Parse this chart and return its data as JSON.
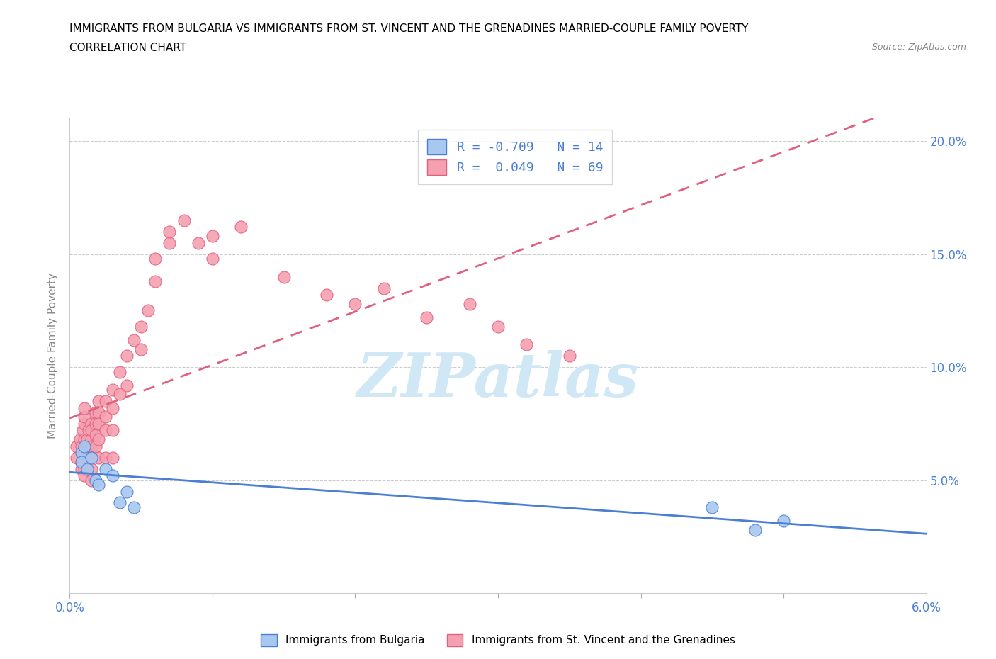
{
  "title_line1": "IMMIGRANTS FROM BULGARIA VS IMMIGRANTS FROM ST. VINCENT AND THE GRENADINES MARRIED-COUPLE FAMILY POVERTY",
  "title_line2": "CORRELATION CHART",
  "source_text": "Source: ZipAtlas.com",
  "ylabel": "Married-Couple Family Poverty",
  "xlim": [
    0.0,
    0.06
  ],
  "ylim": [
    0.0,
    0.21
  ],
  "xtick_positions": [
    0.0,
    0.01,
    0.02,
    0.03,
    0.04,
    0.05,
    0.06
  ],
  "xtick_labels": [
    "0.0%",
    "",
    "",
    "",
    "",
    "",
    "6.0%"
  ],
  "ytick_positions": [
    0.0,
    0.05,
    0.1,
    0.15,
    0.2
  ],
  "ytick_labels": [
    "",
    "5.0%",
    "10.0%",
    "15.0%",
    "20.0%"
  ],
  "color_bulgaria": "#a8c8f0",
  "color_svg": "#f5a0b0",
  "line_bulgaria_color": "#4a7fd4",
  "line_svg_color": "#e06080",
  "tick_color": "#4a7fd4",
  "watermark_text": "ZIPatlas",
  "watermark_color": "#d0e8f5",
  "bulgaria_x": [
    0.0008,
    0.0008,
    0.001,
    0.0012,
    0.0015,
    0.0018,
    0.002,
    0.0025,
    0.003,
    0.0035,
    0.004,
    0.0045,
    0.045,
    0.048,
    0.05
  ],
  "bulgaria_y": [
    0.062,
    0.058,
    0.065,
    0.055,
    0.06,
    0.05,
    0.048,
    0.055,
    0.052,
    0.04,
    0.045,
    0.038,
    0.038,
    0.028,
    0.032
  ],
  "svincent_x": [
    0.0005,
    0.0005,
    0.0007,
    0.0008,
    0.0008,
    0.0008,
    0.0009,
    0.001,
    0.001,
    0.001,
    0.001,
    0.001,
    0.001,
    0.001,
    0.001,
    0.0012,
    0.0012,
    0.0013,
    0.0013,
    0.0015,
    0.0015,
    0.0015,
    0.0015,
    0.0015,
    0.0015,
    0.0015,
    0.0018,
    0.0018,
    0.0018,
    0.0018,
    0.002,
    0.002,
    0.002,
    0.002,
    0.002,
    0.0025,
    0.0025,
    0.0025,
    0.0025,
    0.003,
    0.003,
    0.003,
    0.003,
    0.0035,
    0.0035,
    0.004,
    0.004,
    0.0045,
    0.005,
    0.005,
    0.0055,
    0.006,
    0.006,
    0.007,
    0.007,
    0.008,
    0.009,
    0.01,
    0.01,
    0.012,
    0.015,
    0.018,
    0.02,
    0.022,
    0.025,
    0.028,
    0.03,
    0.032,
    0.035
  ],
  "svincent_y": [
    0.065,
    0.06,
    0.068,
    0.065,
    0.058,
    0.055,
    0.072,
    0.068,
    0.062,
    0.058,
    0.055,
    0.052,
    0.075,
    0.078,
    0.082,
    0.065,
    0.068,
    0.072,
    0.06,
    0.075,
    0.068,
    0.072,
    0.065,
    0.06,
    0.055,
    0.05,
    0.08,
    0.075,
    0.07,
    0.065,
    0.085,
    0.08,
    0.075,
    0.068,
    0.06,
    0.085,
    0.078,
    0.072,
    0.06,
    0.09,
    0.082,
    0.072,
    0.06,
    0.098,
    0.088,
    0.105,
    0.092,
    0.112,
    0.118,
    0.108,
    0.125,
    0.138,
    0.148,
    0.155,
    0.16,
    0.165,
    0.155,
    0.148,
    0.158,
    0.162,
    0.14,
    0.132,
    0.128,
    0.135,
    0.122,
    0.128,
    0.118,
    0.11,
    0.105
  ]
}
